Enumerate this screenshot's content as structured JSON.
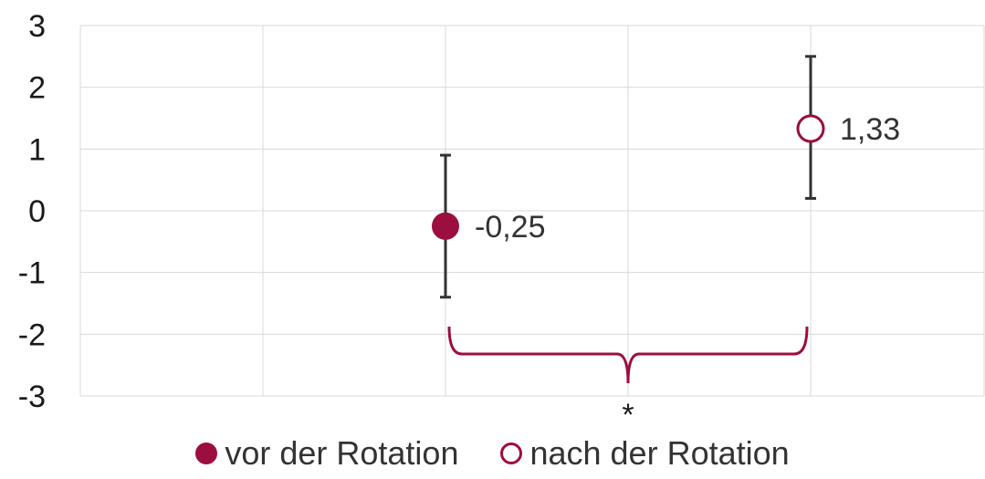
{
  "chart_data": {
    "type": "scatter",
    "ylim": [
      -3,
      3
    ],
    "y_ticks": [
      "3",
      "2",
      "1",
      "0",
      "-1",
      "-2",
      "-3"
    ],
    "x_categories": 5,
    "grid": true,
    "legend_position": "bottom",
    "series": [
      {
        "name": "vor der Rotation",
        "marker": "filled-circle",
        "color": "#9b0e3f",
        "x": 3,
        "y": -0.25,
        "error_low": -1.4,
        "error_high": 0.9,
        "label": "-0,25"
      },
      {
        "name": "nach der Rotation",
        "marker": "hollow-circle",
        "color": "#9b0e3f",
        "x": 5,
        "y": 1.33,
        "error_low": 0.2,
        "error_high": 2.5,
        "label": "1,33"
      }
    ],
    "significance": {
      "from_x": 3,
      "to_x": 5,
      "label": "*",
      "color": "#9b0e3f"
    }
  }
}
